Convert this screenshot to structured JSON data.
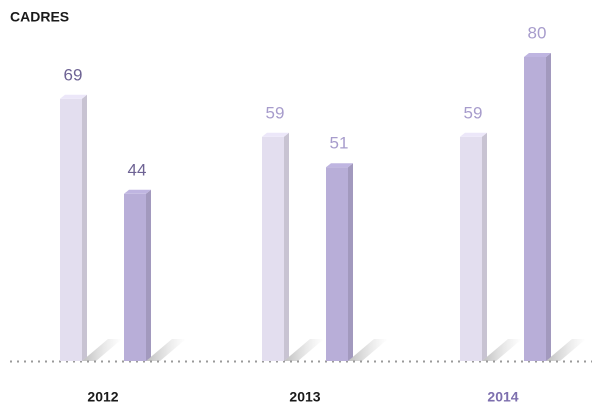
{
  "chart_data": {
    "type": "bar",
    "title": "CADRES",
    "categories": [
      "2012",
      "2013",
      "2014"
    ],
    "category_label_colors": [
      "#1a1a1a",
      "#1a1a1a",
      "#7d6fae"
    ],
    "value_label_colors": [
      "#6e6394",
      "#a79ccc",
      "#a79ccc"
    ],
    "series": [
      {
        "color": "#e3deef",
        "values": [
          69,
          59,
          59
        ]
      },
      {
        "color": "#b8aed8",
        "values": [
          44,
          51,
          80
        ]
      }
    ]
  }
}
